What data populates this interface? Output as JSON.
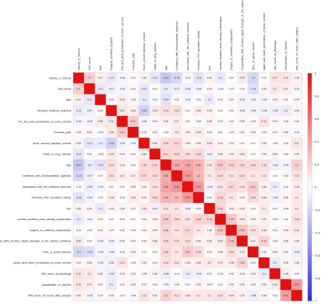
{
  "chart_data": {
    "type": "heatmap",
    "title": "",
    "xlabel": "",
    "ylabel": "",
    "color_scale": {
      "negative": "#2b2bd8",
      "zero": "#ffffff",
      "positive": "#e01212",
      "range": [
        -1,
        1
      ],
      "ticks": [
        "1",
        "0.8",
        "0.6",
        "0.4",
        "0.2",
        "0",
        "-0.2",
        "-0.4",
        "-0.6",
        "-0.8",
        "-1"
      ]
    },
    "variables": [
      "History_of_trauma",
      "VAS_score",
      "BMI",
      "Surgical_vertebral_segment",
      "Pre_and_post_penetration_of_bone_cement",
      "Puncture_path",
      "Bone_cement_injection_volume",
      "Heart_or_lung_disease",
      "Age",
      "Combined_with_thoracolumbar_kyphosis",
      "Associated_with_old_vertebral_fractures",
      "Previous_PVP_operation_history",
      "Sex",
      "Lumbar_vertebra_bone_density_examination",
      "Degree_of_vertebral_compression",
      "Preoperative_MRI_showed_signal_changes_in_the_injured_vertebrae",
      "Time_of_spinal_fracture",
      "Upper_and_lower_penetration_of_bone_cement",
      "VAS_score_at_discharge",
      "classification_of_fracture",
      "VAS_score_24_hours_after_surgery"
    ],
    "matrix": [
      [
        1,
        0.2,
        0.07,
        -0.11,
        -0.05,
        0.03,
        0.05,
        -0.12,
        -0.27,
        -0.19,
        -0.02,
        -0.13,
        0.06,
        -0.1,
        -0.01,
        0.09,
        -0.2,
        0.03,
        0.12,
        0.11,
        0.06
      ],
      [
        0.2,
        1,
        -0.11,
        -0.07,
        -0.05,
        0.04,
        -0.12,
        0.02,
        -0.1,
        -0.07,
        -0.08,
        -0.06,
        0.04,
        -0.03,
        -0.02,
        0.02,
        -0.15,
        0.05,
        0.1,
        0.07,
        -0.05
      ],
      [
        0.07,
        -0.11,
        1,
        0.03,
        0.08,
        -0.03,
        -0.1,
        -0.02,
        -0.14,
        0.02,
        -0.05,
        -0.01,
        -0.1,
        0.03,
        0.04,
        -0.06,
        -0.05,
        -0.05,
        0.05,
        0.02,
        0.04
      ],
      [
        -0.11,
        -0.07,
        0.03,
        1,
        0.11,
        0.08,
        -0.22,
        0.09,
        0.14,
        0.13,
        0.02,
        0.08,
        0.05,
        0.01,
        0.03,
        -0.05,
        -0.06,
        -0.06,
        -0.08,
        -0.1,
        0.05
      ],
      [
        -0.05,
        -0.05,
        0.08,
        0.11,
        1,
        0.22,
        -0.05,
        0.04,
        0.06,
        0.07,
        0.02,
        -0.02,
        0.06,
        0.03,
        0.02,
        0.05,
        -0.03,
        0.12,
        0.04,
        0.03,
        0.02
      ],
      [
        0.03,
        0.04,
        -0.03,
        0.08,
        0.22,
        1,
        -0.02,
        0.03,
        -0.02,
        0.07,
        0.05,
        0.09,
        0.03,
        0.01,
        -0.02,
        0.04,
        0.05,
        -0.02,
        0.03,
        0.06,
        -0.04
      ],
      [
        0.05,
        -0.12,
        -0.1,
        -0.22,
        -0.05,
        -0.02,
        1,
        0.08,
        0.15,
        0.17,
        0.05,
        0.05,
        0.09,
        0.04,
        0.03,
        0.02,
        0.01,
        0.05,
        -0.03,
        0.03,
        0.11
      ],
      [
        -0.12,
        0.02,
        -0.02,
        0.09,
        0.04,
        0.03,
        0.08,
        1,
        0.17,
        0.15,
        0.14,
        0.16,
        -0.07,
        0.06,
        0.05,
        0.08,
        0.02,
        0.04,
        0.06,
        0.03,
        0.05
      ],
      [
        -0.27,
        -0.1,
        -0.14,
        0.14,
        0.06,
        -0.02,
        0.15,
        0.17,
        1,
        0.35,
        0.38,
        0.32,
        0.12,
        0.22,
        0.18,
        0.15,
        0.16,
        0.13,
        -0.08,
        -0.05,
        0.2
      ],
      [
        -0.19,
        -0.07,
        0.02,
        0.13,
        0.07,
        0.07,
        0.17,
        0.15,
        0.35,
        1,
        0.44,
        0.3,
        0.1,
        0.15,
        0.11,
        0.14,
        0.1,
        0.11,
        -0.01,
        0.04,
        0.12
      ],
      [
        -0.02,
        -0.08,
        -0.05,
        0.02,
        0.02,
        0.05,
        0.05,
        0.14,
        0.38,
        0.44,
        1,
        0.42,
        -0.06,
        0.12,
        0.17,
        0.13,
        0.22,
        0.06,
        -0.1,
        0.02,
        0.08
      ],
      [
        -0.13,
        -0.06,
        -0.01,
        0.08,
        -0.02,
        0.09,
        0.05,
        0.16,
        0.32,
        0.3,
        0.42,
        1,
        0.04,
        0.18,
        0.1,
        0.05,
        0.16,
        0.08,
        -0.06,
        0.05,
        0.1
      ],
      [
        0.06,
        0.04,
        -0.1,
        0.05,
        0.06,
        0.03,
        0.09,
        -0.07,
        0.12,
        0.1,
        -0.06,
        0.04,
        1,
        0.18,
        0.05,
        0.06,
        0.03,
        0.1,
        0.02,
        -0.04,
        0.1
      ],
      [
        -0.1,
        -0.03,
        0.03,
        0.01,
        0.03,
        0.01,
        0.04,
        0.06,
        0.22,
        0.15,
        0.12,
        0.18,
        0.18,
        1,
        0.24,
        0.09,
        0.05,
        0.07,
        -0.03,
        0.01,
        0.13
      ],
      [
        -0.01,
        -0.02,
        0.04,
        0.03,
        0.02,
        -0.02,
        0.03,
        0.05,
        0.18,
        0.11,
        0.17,
        0.1,
        0.05,
        0.24,
        1,
        0.26,
        0.14,
        0.08,
        0.02,
        0.05,
        0.09
      ],
      [
        0.09,
        0.02,
        -0.06,
        -0.05,
        0.05,
        0.04,
        0.02,
        0.08,
        0.15,
        0.14,
        0.13,
        0.05,
        0.06,
        0.09,
        0.26,
        1,
        0.07,
        0.19,
        -0.04,
        0.06,
        0.05
      ],
      [
        -0.2,
        -0.15,
        -0.05,
        -0.06,
        -0.03,
        0.05,
        0.01,
        0.02,
        0.16,
        0.1,
        0.22,
        0.16,
        0.03,
        0.05,
        0.14,
        0.07,
        1,
        0.02,
        0.05,
        0.04,
        -0.08
      ],
      [
        0.03,
        0.05,
        -0.05,
        -0.06,
        0.12,
        -0.02,
        0.05,
        0.04,
        0.13,
        0.11,
        0.06,
        0.08,
        0.1,
        0.07,
        0.08,
        0.19,
        0.02,
        1,
        -0.1,
        0.05,
        0.06
      ],
      [
        0.12,
        0.1,
        0.05,
        -0.08,
        0.04,
        0.03,
        -0.03,
        0.06,
        -0.08,
        -0.01,
        -0.1,
        -0.06,
        0.02,
        -0.03,
        0.02,
        -0.04,
        0.05,
        -0.1,
        1,
        0.08,
        -0.02
      ],
      [
        0.11,
        0.07,
        0.02,
        -0.1,
        0.03,
        0.06,
        0.03,
        0.03,
        -0.05,
        0.04,
        0.02,
        0.05,
        -0.04,
        0.01,
        0.05,
        0.06,
        0.04,
        0.05,
        0.08,
        1,
        0.41
      ],
      [
        0.06,
        -0.05,
        0.04,
        0.05,
        0.02,
        -0.04,
        0.11,
        0.05,
        0.2,
        0.12,
        0.08,
        0.1,
        0.1,
        0.13,
        0.09,
        0.05,
        -0.08,
        0.06,
        -0.02,
        0.41,
        1
      ]
    ]
  }
}
